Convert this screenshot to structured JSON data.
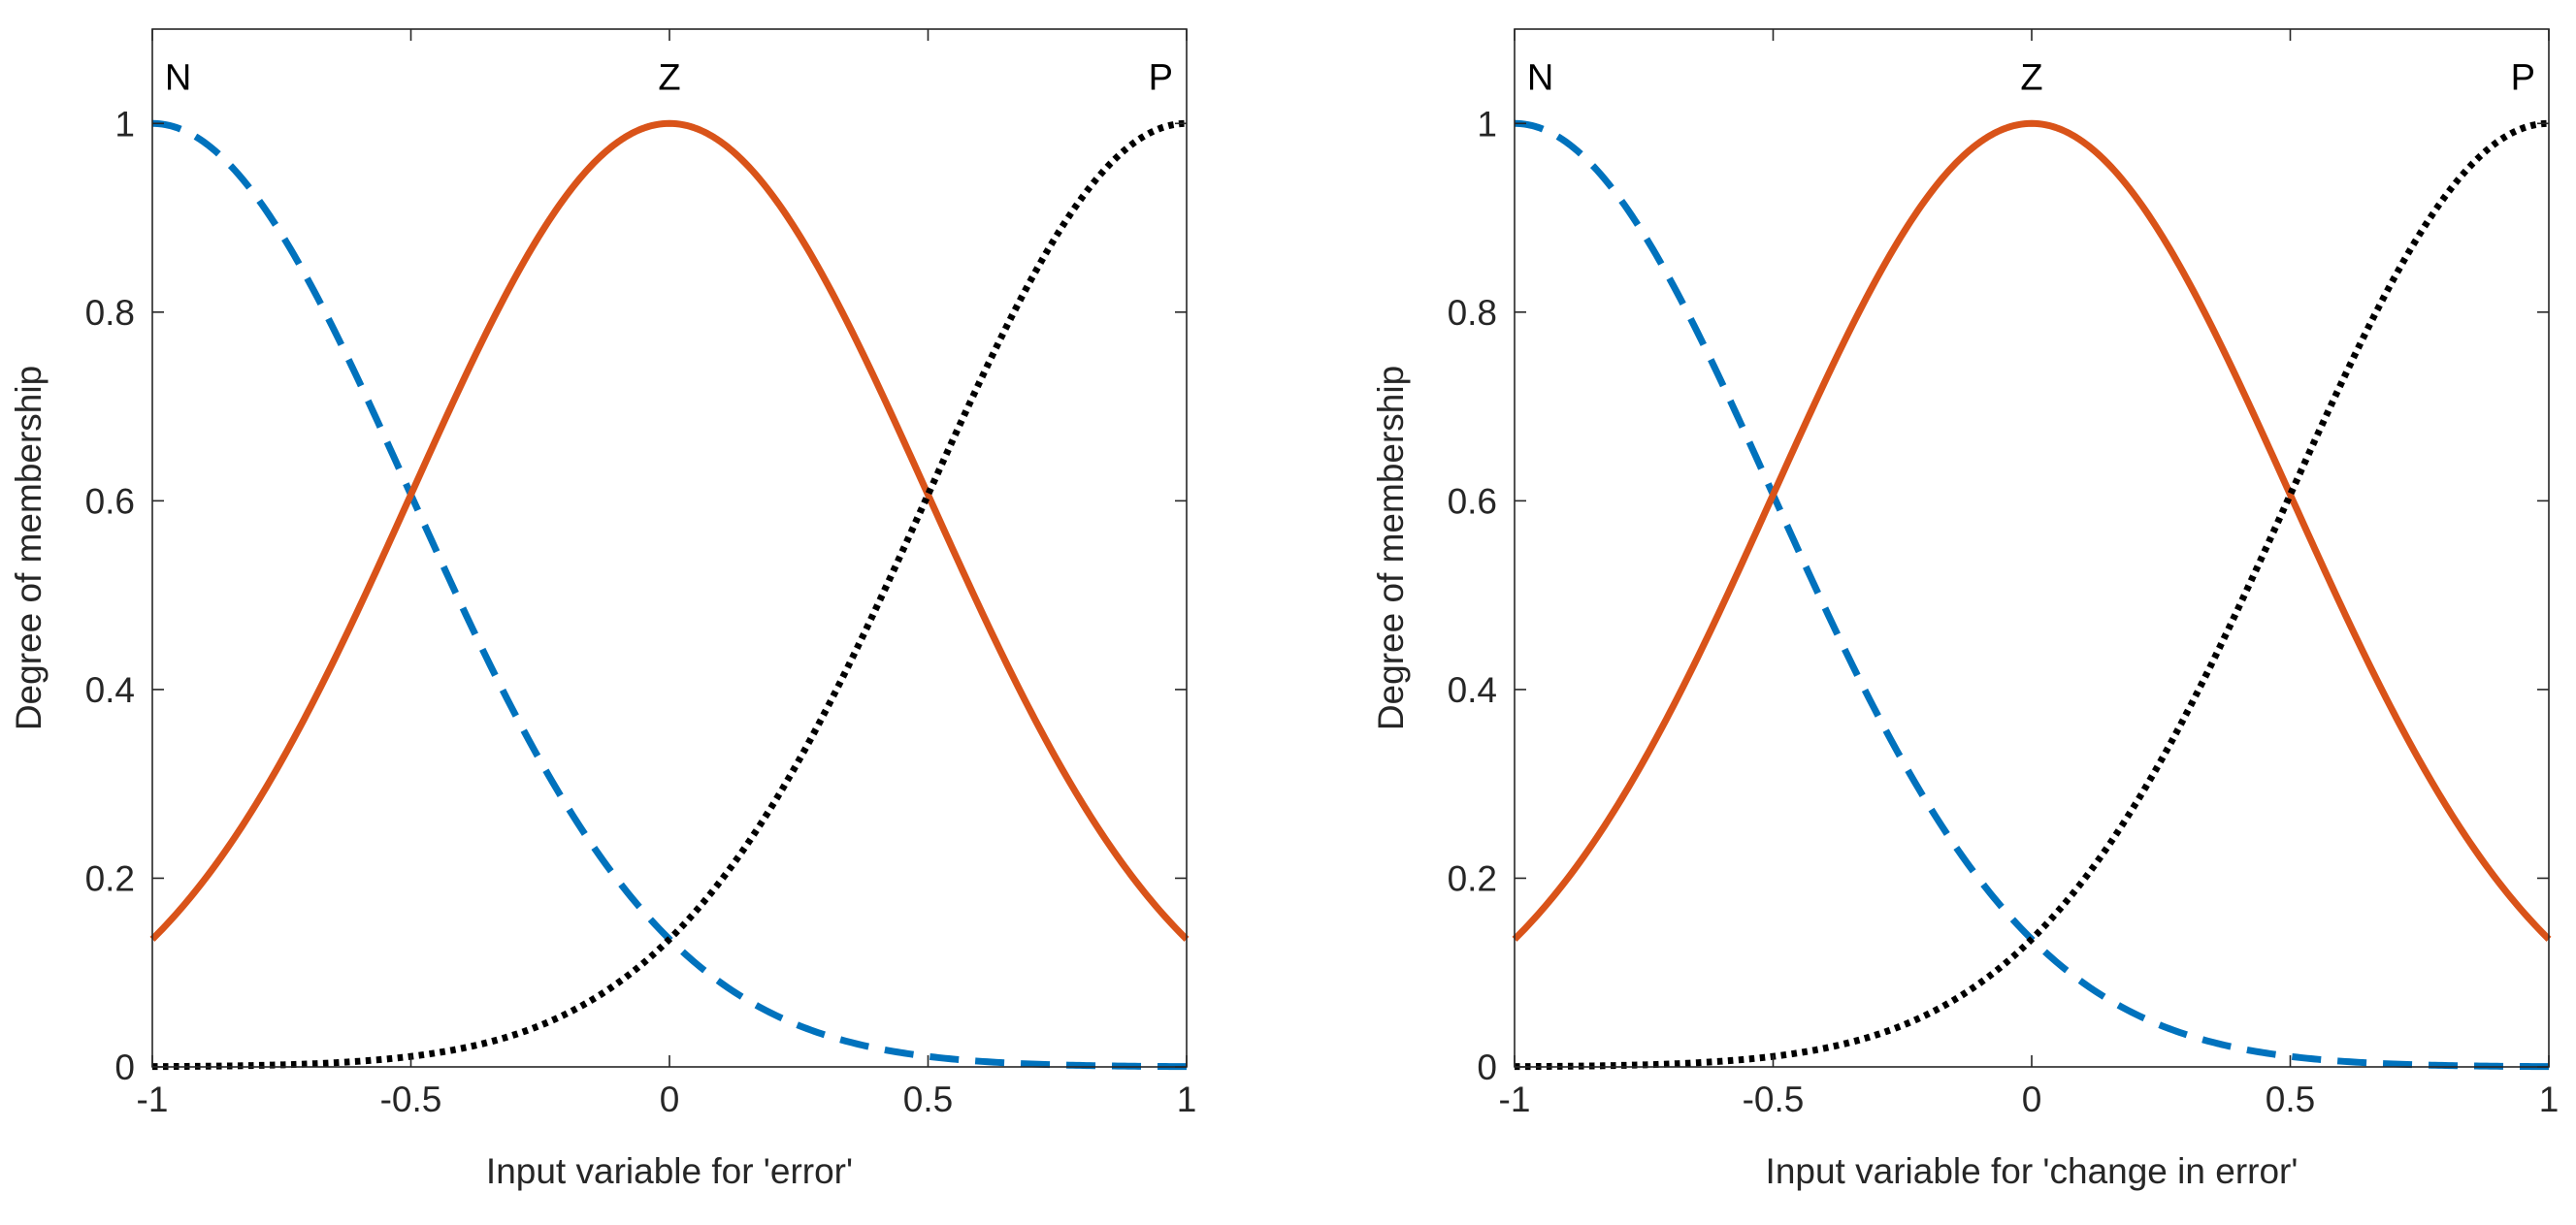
{
  "chart_data": [
    {
      "type": "line",
      "title": "",
      "xlabel": "Input variable for 'error'",
      "ylabel": "Degree of membership",
      "xlim": [
        -1,
        1
      ],
      "ylim": [
        0,
        1.1
      ],
      "xticks": [
        -1,
        -0.5,
        0,
        0.5,
        1
      ],
      "xtick_labels": [
        "-1",
        "-0.5",
        "0",
        "0.5",
        "1"
      ],
      "yticks": [
        0,
        0.2,
        0.4,
        0.6,
        0.8,
        1
      ],
      "ytick_labels": [
        "0",
        "0.2",
        "0.4",
        "0.6",
        "0.8",
        "1"
      ],
      "grid": false,
      "series": [
        {
          "name": "N",
          "shape": "gaussian",
          "center": -1,
          "sigma": 0.5,
          "color": "#0072BD",
          "style": "dashed",
          "x": [
            -1,
            -0.75,
            -0.5,
            -0.25,
            0,
            0.25,
            0.5,
            0.75,
            1
          ],
          "values": [
            1,
            0.88,
            0.61,
            0.32,
            0.14,
            0.04,
            0.01,
            0.0,
            0.0
          ]
        },
        {
          "name": "Z",
          "shape": "gaussian",
          "center": 0,
          "sigma": 0.5,
          "color": "#D95319",
          "style": "solid",
          "x": [
            -1,
            -0.75,
            -0.5,
            -0.25,
            0,
            0.25,
            0.5,
            0.75,
            1
          ],
          "values": [
            0.14,
            0.32,
            0.61,
            0.88,
            1,
            0.88,
            0.61,
            0.32,
            0.14
          ]
        },
        {
          "name": "P",
          "shape": "gaussian",
          "center": 1,
          "sigma": 0.5,
          "color": "#000000",
          "style": "dotted",
          "x": [
            -1,
            -0.75,
            -0.5,
            -0.25,
            0,
            0.25,
            0.5,
            0.75,
            1
          ],
          "values": [
            0.0,
            0.0,
            0.01,
            0.04,
            0.14,
            0.32,
            0.61,
            0.88,
            1
          ]
        }
      ],
      "annotations": [
        {
          "text": "N",
          "x": -0.95,
          "y": 1.05
        },
        {
          "text": "Z",
          "x": 0,
          "y": 1.05
        },
        {
          "text": "P",
          "x": 0.95,
          "y": 1.05
        }
      ]
    },
    {
      "type": "line",
      "title": "",
      "xlabel": "Input variable for 'change in error'",
      "ylabel": "Degree of membership",
      "xlim": [
        -1,
        1
      ],
      "ylim": [
        0,
        1.1
      ],
      "xticks": [
        -1,
        -0.5,
        0,
        0.5,
        1
      ],
      "xtick_labels": [
        "-1",
        "-0.5",
        "0",
        "0.5",
        "1"
      ],
      "yticks": [
        0,
        0.2,
        0.4,
        0.6,
        0.8,
        1
      ],
      "ytick_labels": [
        "0",
        "0.2",
        "0.4",
        "0.6",
        "0.8",
        "1"
      ],
      "grid": false,
      "series": [
        {
          "name": "N",
          "shape": "gaussian",
          "center": -1,
          "sigma": 0.5,
          "color": "#0072BD",
          "style": "dashed",
          "x": [
            -1,
            -0.75,
            -0.5,
            -0.25,
            0,
            0.25,
            0.5,
            0.75,
            1
          ],
          "values": [
            1,
            0.88,
            0.61,
            0.32,
            0.14,
            0.04,
            0.01,
            0.0,
            0.0
          ]
        },
        {
          "name": "Z",
          "shape": "gaussian",
          "center": 0,
          "sigma": 0.5,
          "color": "#D95319",
          "style": "solid",
          "x": [
            -1,
            -0.75,
            -0.5,
            -0.25,
            0,
            0.25,
            0.5,
            0.75,
            1
          ],
          "values": [
            0.14,
            0.32,
            0.61,
            0.88,
            1,
            0.88,
            0.61,
            0.32,
            0.14
          ]
        },
        {
          "name": "P",
          "shape": "gaussian",
          "center": 1,
          "sigma": 0.5,
          "color": "#000000",
          "style": "dotted",
          "x": [
            -1,
            -0.75,
            -0.5,
            -0.25,
            0,
            0.25,
            0.5,
            0.75,
            1
          ],
          "values": [
            0.0,
            0.0,
            0.01,
            0.04,
            0.14,
            0.32,
            0.61,
            0.88,
            1
          ]
        }
      ],
      "annotations": [
        {
          "text": "N",
          "x": -0.95,
          "y": 1.05
        },
        {
          "text": "Z",
          "x": 0,
          "y": 1.05
        },
        {
          "text": "P",
          "x": 0.95,
          "y": 1.05
        }
      ]
    }
  ]
}
